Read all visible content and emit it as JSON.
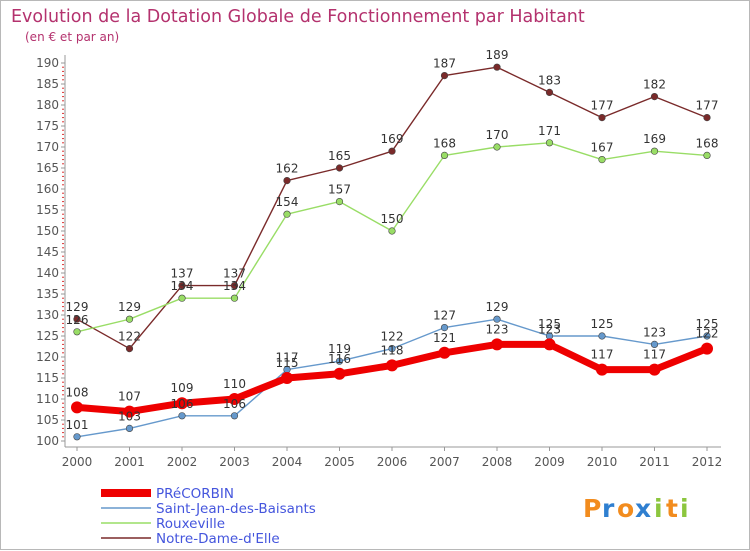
{
  "chart_data": {
    "type": "line",
    "title": "Evolution de la Dotation Globale de Fonctionnement par Habitant",
    "subtitle": "(en € et par an)",
    "xlabel": "",
    "ylabel": "",
    "ylim": [
      100,
      190
    ],
    "yticks": [
      100,
      105,
      110,
      115,
      120,
      125,
      130,
      135,
      140,
      145,
      150,
      155,
      160,
      165,
      170,
      175,
      180,
      185,
      190
    ],
    "categories": [
      "2000",
      "2001",
      "2002",
      "2003",
      "2004",
      "2005",
      "2006",
      "2007",
      "2008",
      "2009",
      "2010",
      "2011",
      "2012"
    ],
    "grid": false,
    "legend_position": "bottom-left",
    "series": [
      {
        "name": "PRéCORBIN",
        "color": "#ee0000",
        "width": "thick",
        "values": [
          108,
          107,
          109,
          110,
          115,
          116,
          118,
          121,
          123,
          123,
          117,
          117,
          122
        ]
      },
      {
        "name": "Saint-Jean-des-Baisants",
        "color": "#6699cc",
        "width": "thin",
        "values": [
          101,
          103,
          106,
          106,
          117,
          119,
          122,
          127,
          129,
          125,
          125,
          123,
          125
        ]
      },
      {
        "name": "Rouxeville",
        "color": "#99dd66",
        "width": "thin",
        "values": [
          126,
          129,
          134,
          134,
          154,
          157,
          150,
          168,
          170,
          171,
          167,
          169,
          168
        ]
      },
      {
        "name": "Notre-Dame-d'Elle",
        "color": "#7a2a2a",
        "width": "thin",
        "values": [
          129,
          122,
          137,
          137,
          162,
          165,
          169,
          187,
          189,
          183,
          177,
          182,
          177
        ]
      }
    ]
  },
  "brand": {
    "letters": [
      "P",
      "r",
      "o",
      "x",
      "i",
      "t",
      "i"
    ],
    "colors": [
      "#f28c1e",
      "#2f7fd0",
      "#f28c1e",
      "#2f7fd0",
      "#8cc63e",
      "#f28c1e",
      "#8cc63e"
    ]
  }
}
